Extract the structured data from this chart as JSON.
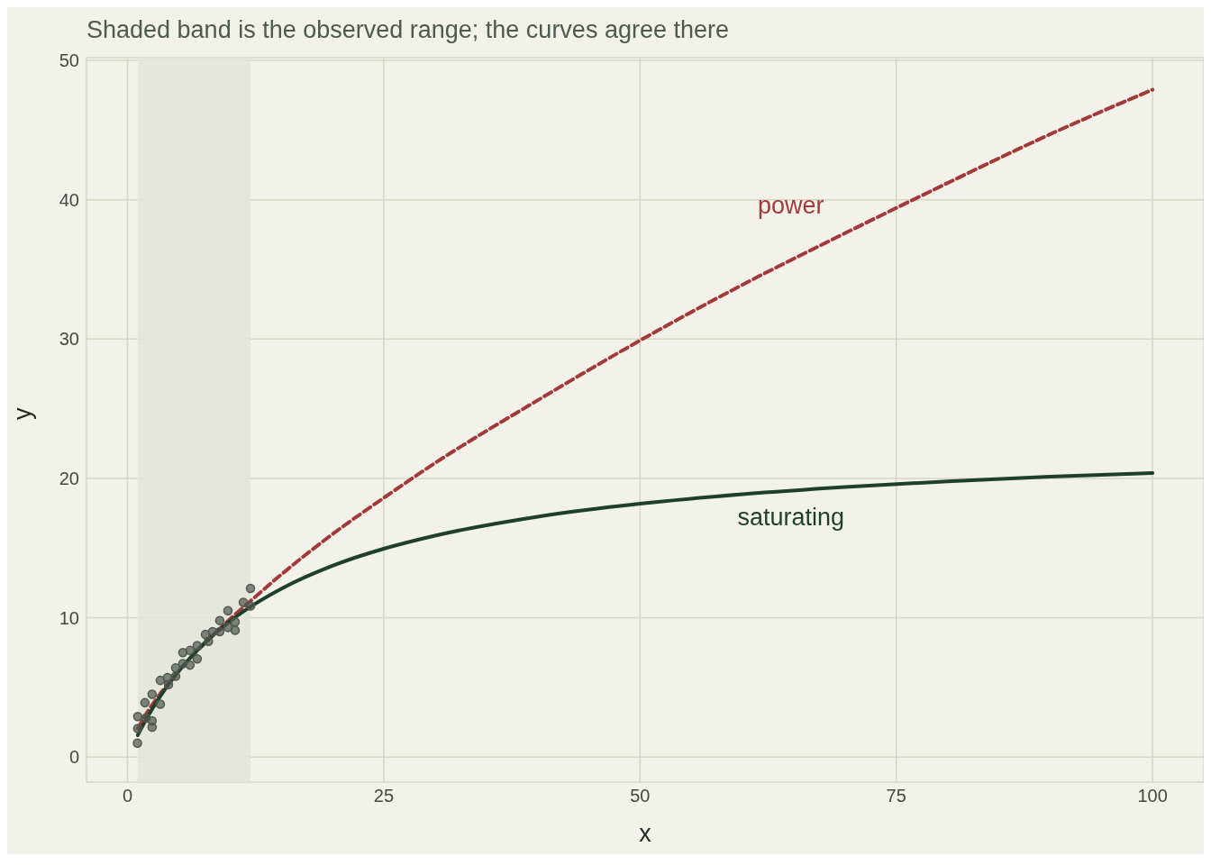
{
  "chart_data": {
    "type": "line",
    "title": "Shaded band is the observed range; the curves agree there",
    "xlabel": "x",
    "ylabel": "y",
    "xlim": [
      -4,
      105
    ],
    "ylim": [
      -1.8,
      50.2
    ],
    "xticks": [
      0,
      25,
      50,
      75,
      100
    ],
    "yticks": [
      0,
      10,
      20,
      30,
      40,
      50
    ],
    "grid": true,
    "bands": [
      {
        "axis": "x",
        "from": 1,
        "to": 12,
        "color": "#e3e5d9"
      }
    ],
    "series": [
      {
        "type": "scatter",
        "color": "#4f574f",
        "marker": "circle",
        "x": [
          0.97,
          1.0,
          1.0,
          1.8,
          2.4,
          2.4,
          1.7,
          2.4,
          3.2,
          3.2,
          3.9,
          4.0,
          4.7,
          4.7,
          5.4,
          5.4,
          6.1,
          6.1,
          6.8,
          6.8,
          7.6,
          7.9,
          8.3,
          9.0,
          9.0,
          9.8,
          9.8,
          10.5,
          10.5,
          11.3,
          12.0,
          12.0
        ],
        "values": [
          1.0,
          2.05,
          2.9,
          2.8,
          2.6,
          2.15,
          3.9,
          4.5,
          3.8,
          5.5,
          5.7,
          5.2,
          6.4,
          5.8,
          7.5,
          6.7,
          7.65,
          6.6,
          8.0,
          7.05,
          8.8,
          8.3,
          9.0,
          9.8,
          9.0,
          10.5,
          9.3,
          9.7,
          9.1,
          11.1,
          10.85,
          12.1
        ]
      },
      {
        "name": "power",
        "color": "#a33a3a",
        "line_style": "dashed",
        "x": [
          1,
          2,
          3,
          4,
          6,
          8,
          10,
          12,
          15,
          20,
          25,
          30,
          40,
          50,
          60,
          70,
          80,
          90,
          100
        ],
        "values": [
          2.05,
          3.3,
          4.35,
          5.3,
          7.0,
          8.5,
          9.9,
          11.2,
          13.1,
          16.0,
          18.6,
          21.1,
          25.6,
          29.9,
          33.9,
          37.6,
          41.2,
          44.7,
          47.9
        ]
      },
      {
        "name": "saturating",
        "color": "#1e3f2a",
        "line_style": "solid",
        "x": [
          1,
          2,
          3,
          4,
          6,
          8,
          10,
          12,
          15,
          20,
          25,
          30,
          40,
          50,
          60,
          70,
          80,
          90,
          100
        ],
        "values": [
          1.57,
          2.94,
          4.14,
          5.21,
          7.03,
          8.51,
          9.75,
          10.79,
          12.08,
          13.73,
          14.95,
          15.89,
          17.25,
          18.18,
          18.86,
          19.38,
          19.79,
          20.12,
          20.39
        ]
      }
    ]
  }
}
